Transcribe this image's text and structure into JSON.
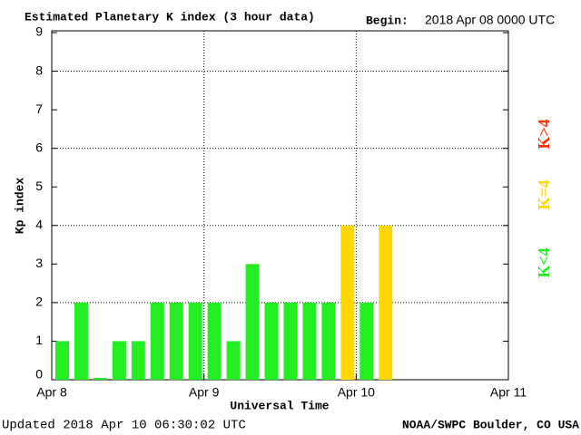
{
  "chart_data": {
    "type": "bar",
    "title": "Estimated Planetary K index (3 hour data)",
    "begin_label": "Begin:",
    "begin": "2018 Apr 08 0000 UTC",
    "xlabel": "Universal Time",
    "ylabel": "Kp index",
    "updated": "Updated 2018 Apr 10 06:30:02 UTC",
    "source": "NOAA/SWPC Boulder, CO USA",
    "x": [
      0,
      3,
      6,
      9,
      12,
      15,
      18,
      21,
      24,
      27,
      30,
      33,
      36,
      39,
      42,
      45,
      48,
      51
    ],
    "bar_width": 3,
    "values": [
      1,
      2,
      0,
      1,
      1,
      2,
      2,
      2,
      2,
      1,
      3,
      2,
      2,
      2,
      2,
      4,
      2,
      4
    ],
    "threshold": 4,
    "legend": [
      {
        "name": "K<4",
        "color": "#22ee22"
      },
      {
        "name": "K=4",
        "color": "#ffd700"
      },
      {
        "name": "K>4",
        "color": "#ff3300"
      }
    ],
    "xlim": [
      0,
      72
    ],
    "xticks": [
      {
        "value": 0,
        "label": "Apr 8"
      },
      {
        "value": 24,
        "label": "Apr 9"
      },
      {
        "value": 48,
        "label": "Apr 10"
      },
      {
        "value": 72,
        "label": "Apr 11"
      }
    ],
    "ylim": [
      0,
      9
    ],
    "yticks": [
      0,
      1,
      2,
      3,
      4,
      5,
      6,
      7,
      8,
      9
    ],
    "grid": true
  }
}
